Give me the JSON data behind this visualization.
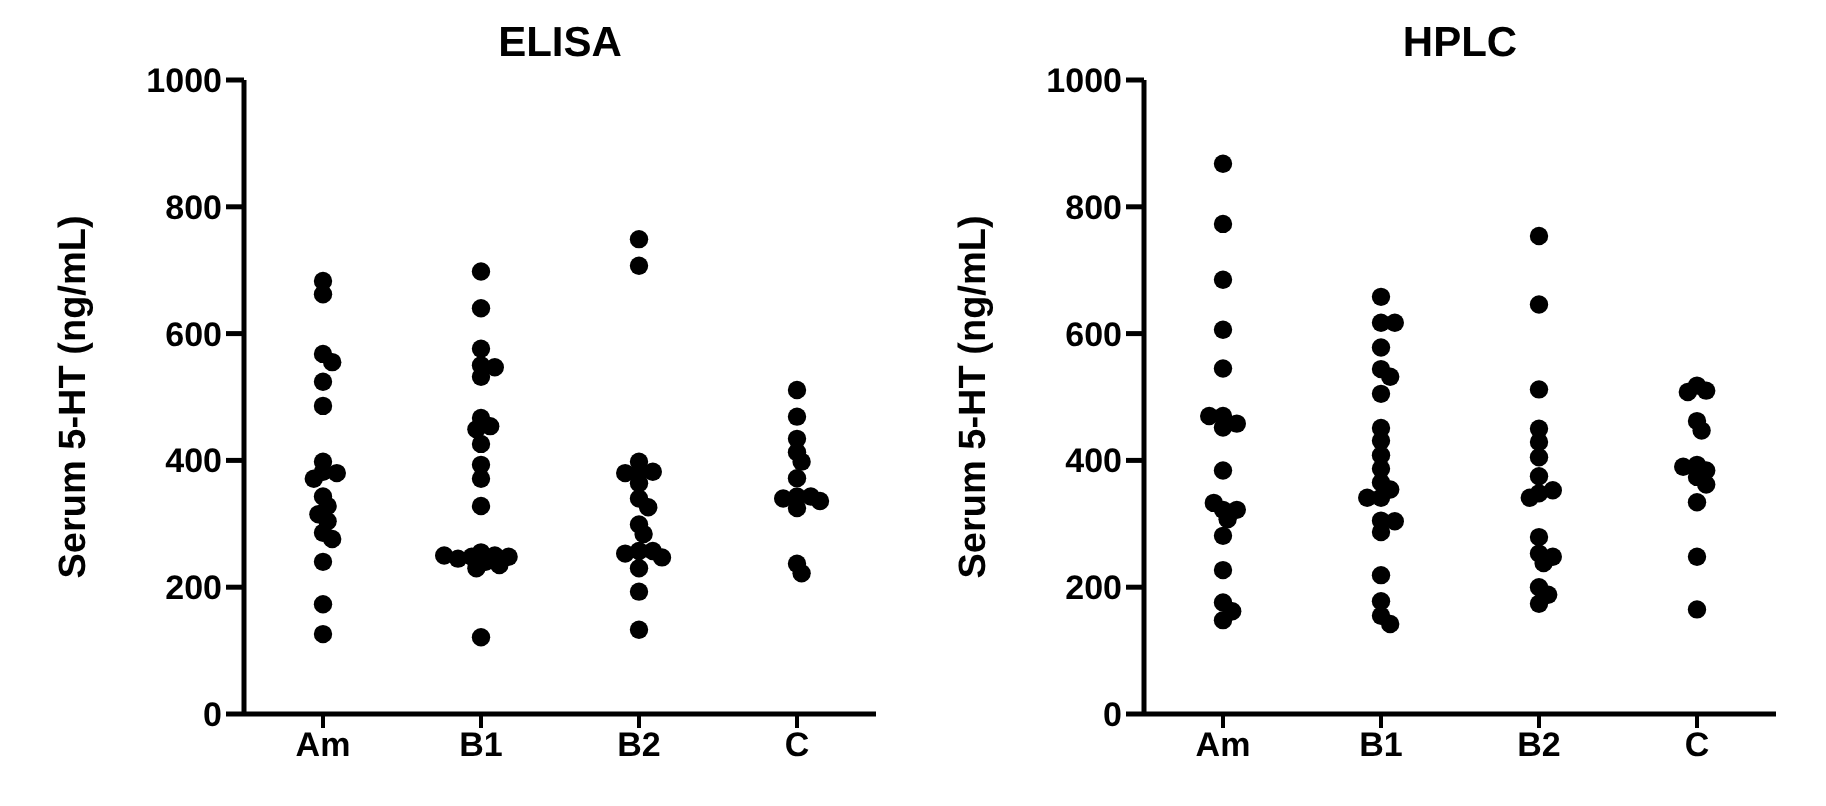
{
  "chart_data": [
    {
      "type": "scatter",
      "title": "ELISA",
      "ylabel": "Serum 5-HT (ng/mL)",
      "categories": [
        "Am",
        "B1",
        "B2",
        "C"
      ],
      "ylim": [
        0,
        1000
      ],
      "yticks": [
        0,
        200,
        400,
        600,
        800,
        1000
      ],
      "marker": "circle",
      "series": [
        {
          "color": "#000000",
          "x": [
            "Am",
            "Am",
            "Am",
            "Am",
            "Am",
            "Am",
            "Am",
            "Am",
            "Am",
            "Am",
            "Am",
            "Am",
            "Am",
            "Am",
            "Am",
            "Am",
            "Am",
            "Am",
            "Am",
            "B1",
            "B1",
            "B1",
            "B1",
            "B1",
            "B1",
            "B1",
            "B1",
            "B1",
            "B1",
            "B1",
            "B1",
            "B1",
            "B1",
            "B1",
            "B1",
            "B1",
            "B1",
            "B1",
            "B1",
            "B1",
            "B1",
            "B1",
            "B2",
            "B2",
            "B2",
            "B2",
            "B2",
            "B2",
            "B2",
            "B2",
            "B2",
            "B2",
            "B2",
            "B2",
            "B2",
            "B2",
            "B2",
            "B2",
            "B2",
            "B2",
            "C",
            "C",
            "C",
            "C",
            "C",
            "C",
            "C",
            "C",
            "C",
            "C",
            "C",
            "C",
            "C"
          ],
          "values": [
            683,
            662,
            568,
            555,
            524,
            486,
            398,
            382,
            380,
            371,
            343,
            328,
            315,
            304,
            286,
            276,
            240,
            173,
            126,
            698,
            640,
            576,
            550,
            547,
            532,
            467,
            454,
            449,
            426,
            393,
            371,
            328,
            255,
            250,
            248,
            245,
            240,
            235,
            230,
            248,
            250,
            121,
            749,
            707,
            398,
            382,
            382,
            380,
            364,
            340,
            326,
            299,
            284,
            257,
            257,
            253,
            247,
            230,
            193,
            133,
            511,
            469,
            434,
            413,
            398,
            372,
            343,
            343,
            340,
            336,
            325,
            237,
            222
          ]
        }
      ]
    },
    {
      "type": "scatter",
      "title": "HPLC",
      "ylabel": "Serum 5-HT (ng/mL)",
      "categories": [
        "Am",
        "B1",
        "B2",
        "C"
      ],
      "ylim": [
        0,
        1000
      ],
      "yticks": [
        0,
        200,
        400,
        600,
        800,
        1000
      ],
      "marker": "circle",
      "series": [
        {
          "color": "#000000",
          "x": [
            "Am",
            "Am",
            "Am",
            "Am",
            "Am",
            "Am",
            "Am",
            "Am",
            "Am",
            "Am",
            "Am",
            "Am",
            "Am",
            "Am",
            "Am",
            "Am",
            "Am",
            "Am",
            "Am",
            "B1",
            "B1",
            "B1",
            "B1",
            "B1",
            "B1",
            "B1",
            "B1",
            "B1",
            "B1",
            "B1",
            "B1",
            "B1",
            "B1",
            "B1",
            "B1",
            "B1",
            "B1",
            "B1",
            "B1",
            "B1",
            "B1",
            "B2",
            "B2",
            "B2",
            "B2",
            "B2",
            "B2",
            "B2",
            "B2",
            "B2",
            "B2",
            "B2",
            "B2",
            "B2",
            "B2",
            "B2",
            "B2",
            "B2",
            "C",
            "C",
            "C",
            "C",
            "C",
            "C",
            "C",
            "C",
            "C",
            "C",
            "C",
            "C",
            "C"
          ],
          "values": [
            868,
            773,
            685,
            606,
            545,
            470,
            452,
            458,
            470,
            384,
            322,
            322,
            307,
            333,
            281,
            227,
            176,
            162,
            148,
            658,
            617,
            617,
            578,
            544,
            532,
            505,
            451,
            431,
            408,
            387,
            365,
            354,
            341,
            341,
            305,
            304,
            287,
            219,
            178,
            155,
            142,
            450,
            348,
            253,
            174,
            754,
            646,
            512,
            405,
            353,
            238,
            200,
            429,
            375,
            341,
            279,
            248,
            188,
            518,
            510,
            508,
            462,
            447,
            393,
            384,
            374,
            390,
            362,
            334,
            248,
            165
          ]
        }
      ]
    }
  ]
}
